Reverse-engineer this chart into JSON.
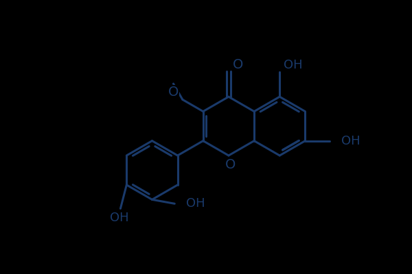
{
  "bg": "#000000",
  "lc": "#1a3a6b",
  "tc": "#1a3a6b",
  "lw": 2.2,
  "fs": 13,
  "figsize": [
    6.0,
    4.0
  ],
  "dpi": 100,
  "xlim": [
    0,
    10
  ],
  "ylim": [
    0,
    6.667
  ],
  "ring_r": 0.72,
  "cAx": 6.85,
  "cAy": 3.55,
  "cCx": 4.6,
  "cCy": 3.55,
  "cBx": 2.42,
  "cBy": 2.6
}
